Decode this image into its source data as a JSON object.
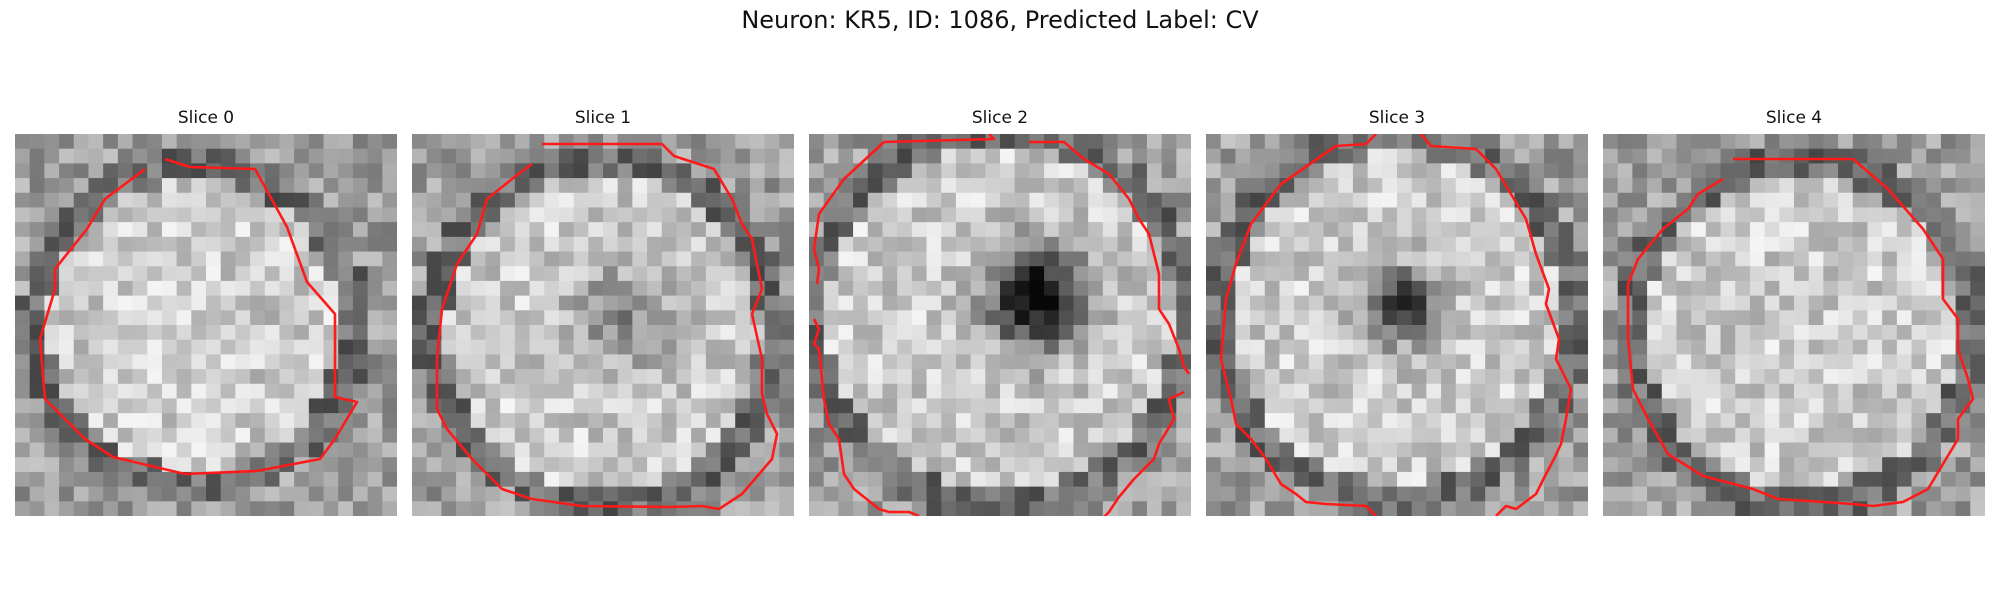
{
  "figure": {
    "title": "Neuron: KR5, ID: 1086, Predicted Label: CV"
  },
  "contour_color": "#ff1a1a",
  "colormap": "gray",
  "panels": [
    {
      "title": "Slice 0"
    },
    {
      "title": "Slice 1"
    },
    {
      "title": "Slice 2"
    },
    {
      "title": "Slice 3"
    },
    {
      "title": "Slice 4"
    }
  ]
}
